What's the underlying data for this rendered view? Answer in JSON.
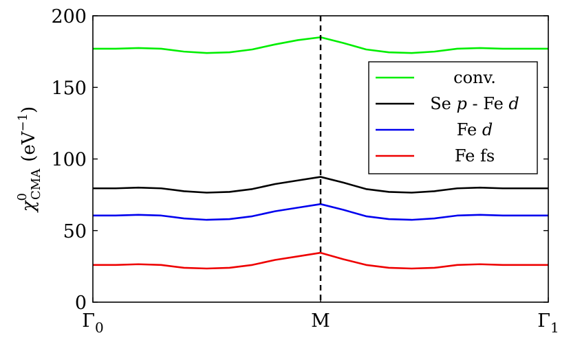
{
  "chart_data": {
    "type": "line",
    "x_ticks": [
      {
        "label": "Γ",
        "sub": "0",
        "x": 0
      },
      {
        "label": "M",
        "sub": "",
        "x": 1
      },
      {
        "label": "Γ",
        "sub": "1",
        "x": 2
      }
    ],
    "xlim": [
      0,
      2
    ],
    "ylim": [
      0,
      200
    ],
    "y_ticks": [
      0,
      50,
      100,
      150,
      200
    ],
    "ylabel": {
      "symbol": "χ",
      "sup": "0",
      "sub": "CMA",
      "unit": "(eV",
      "unit_sup": "−1",
      "unit_close": ")"
    },
    "vline_x": 1,
    "legend_position": "top-right",
    "grid": false,
    "series": [
      {
        "name": "conv.",
        "color": "#00ee00",
        "x": [
          0,
          0.1,
          0.2,
          0.3,
          0.4,
          0.5,
          0.6,
          0.7,
          0.8,
          0.9,
          1.0,
          1.1,
          1.2,
          1.3,
          1.4,
          1.5,
          1.6,
          1.7,
          1.8,
          1.9,
          2.0
        ],
        "y": [
          177,
          177,
          177.5,
          177,
          175,
          174,
          174.5,
          176.5,
          180,
          183,
          185,
          181,
          176.5,
          174.5,
          174,
          175,
          177,
          177.5,
          177,
          177,
          177
        ]
      },
      {
        "name": "Se p - Fe d",
        "color": "#000000",
        "x": [
          0,
          0.1,
          0.2,
          0.3,
          0.4,
          0.5,
          0.6,
          0.7,
          0.8,
          0.9,
          1.0,
          1.1,
          1.2,
          1.3,
          1.4,
          1.5,
          1.6,
          1.7,
          1.8,
          1.9,
          2.0
        ],
        "y": [
          79.5,
          79.5,
          80,
          79.5,
          77.5,
          76.5,
          77,
          79,
          82.5,
          85,
          87.5,
          83.5,
          79,
          77,
          76.5,
          77.5,
          79.5,
          80,
          79.5,
          79.5,
          79.5
        ]
      },
      {
        "name": "Fe d",
        "color": "#0000ee",
        "x": [
          0,
          0.1,
          0.2,
          0.3,
          0.4,
          0.5,
          0.6,
          0.7,
          0.8,
          0.9,
          1.0,
          1.1,
          1.2,
          1.3,
          1.4,
          1.5,
          1.6,
          1.7,
          1.8,
          1.9,
          2.0
        ],
        "y": [
          60.5,
          60.5,
          61,
          60.5,
          58.5,
          57.5,
          58,
          60,
          63.5,
          66,
          68.5,
          64.5,
          60,
          58,
          57.5,
          58.5,
          60.5,
          61,
          60.5,
          60.5,
          60.5
        ]
      },
      {
        "name": "Fe fs",
        "color": "#ee0000",
        "x": [
          0,
          0.1,
          0.2,
          0.3,
          0.4,
          0.5,
          0.6,
          0.7,
          0.8,
          0.9,
          1.0,
          1.1,
          1.2,
          1.3,
          1.4,
          1.5,
          1.6,
          1.7,
          1.8,
          1.9,
          2.0
        ],
        "y": [
          26,
          26,
          26.5,
          26,
          24,
          23.5,
          24,
          26,
          29.5,
          32,
          34.5,
          30,
          26,
          24,
          23.5,
          24,
          26,
          26.5,
          26,
          26,
          26
        ]
      }
    ],
    "legend": [
      {
        "color": "#00ee00",
        "parts": [
          {
            "t": "conv.",
            "i": false
          }
        ]
      },
      {
        "color": "#000000",
        "parts": [
          {
            "t": "Se ",
            "i": false
          },
          {
            "t": "p",
            "i": true
          },
          {
            "t": " - Fe ",
            "i": false
          },
          {
            "t": "d",
            "i": true
          }
        ]
      },
      {
        "color": "#0000ee",
        "parts": [
          {
            "t": "Fe ",
            "i": false
          },
          {
            "t": "d",
            "i": true
          }
        ]
      },
      {
        "color": "#ee0000",
        "parts": [
          {
            "t": "Fe fs",
            "i": false
          }
        ]
      }
    ]
  }
}
